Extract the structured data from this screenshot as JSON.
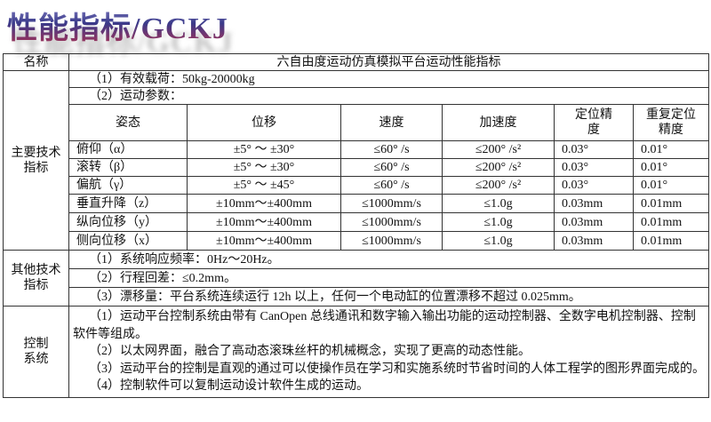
{
  "title": "性能指标/GCKJ",
  "table": {
    "name_label": "名称",
    "name_value": "六自由度运动仿真模拟平台运动性能指标",
    "main": {
      "label": "主要技术指标",
      "payload": "（1）有效载荷：50kg-20000kg",
      "params_label": "（2）运动参数：",
      "headers": [
        "姿态",
        "位移",
        "速度",
        "加速度",
        "定位精度",
        "重复定位精度"
      ],
      "rows": [
        [
          "俯仰（α）",
          "±5° ～ ±30°",
          "≤60° /s",
          "≤200° /s²",
          "0.03°",
          "0.01°"
        ],
        [
          "滚转（β）",
          "±5° ～ ±30°",
          "≤60° /s",
          "≤200° /s²",
          "0.03°",
          "0.01°"
        ],
        [
          "偏航（γ）",
          "±5° ～ ±45°",
          "≤60° /s",
          "≤200° /s²",
          "0.03°",
          "0.01°"
        ],
        [
          "垂直升降（z）",
          "±10mm～±400mm",
          "≤1000mm/s",
          "≤1.0g",
          "0.03mm",
          "0.01mm"
        ],
        [
          "纵向位移（y）",
          "±10mm～±400mm",
          "≤1000mm/s",
          "≤1.0g",
          "0.03mm",
          "0.01mm"
        ],
        [
          "侧向位移（x）",
          "±10mm～±400mm",
          "≤1000mm/s",
          "≤1.0g",
          "0.03mm",
          "0.01mm"
        ]
      ]
    },
    "other": {
      "label": "其他技术指标",
      "items": [
        "（1）系统响应频率：0Hz～20Hz。",
        "（2）行程回差：≤0.2mm。",
        "（3）漂移量：平台系统连续运行 12h 以上，任何一个电动缸的位置漂移不超过 0.025mm。"
      ]
    },
    "control": {
      "label": "控制系统",
      "items": [
        "（1）运动平台控制系统由带有 CanOpen 总线通讯和数字输入输出功能的运动控制器、全数字电机控制器、控制软件等组成。",
        "（2）以太网界面，融合了高动态滚珠丝杆的机械概念，实现了更高的动态性能。",
        "（3）运动平台的控制是直观的通过可以使操作员在学习和实施系统时节省时间的人体工程学的图形界面完成的。",
        "（4）控制软件可以复制运动设计软件生成的运动。"
      ]
    }
  }
}
